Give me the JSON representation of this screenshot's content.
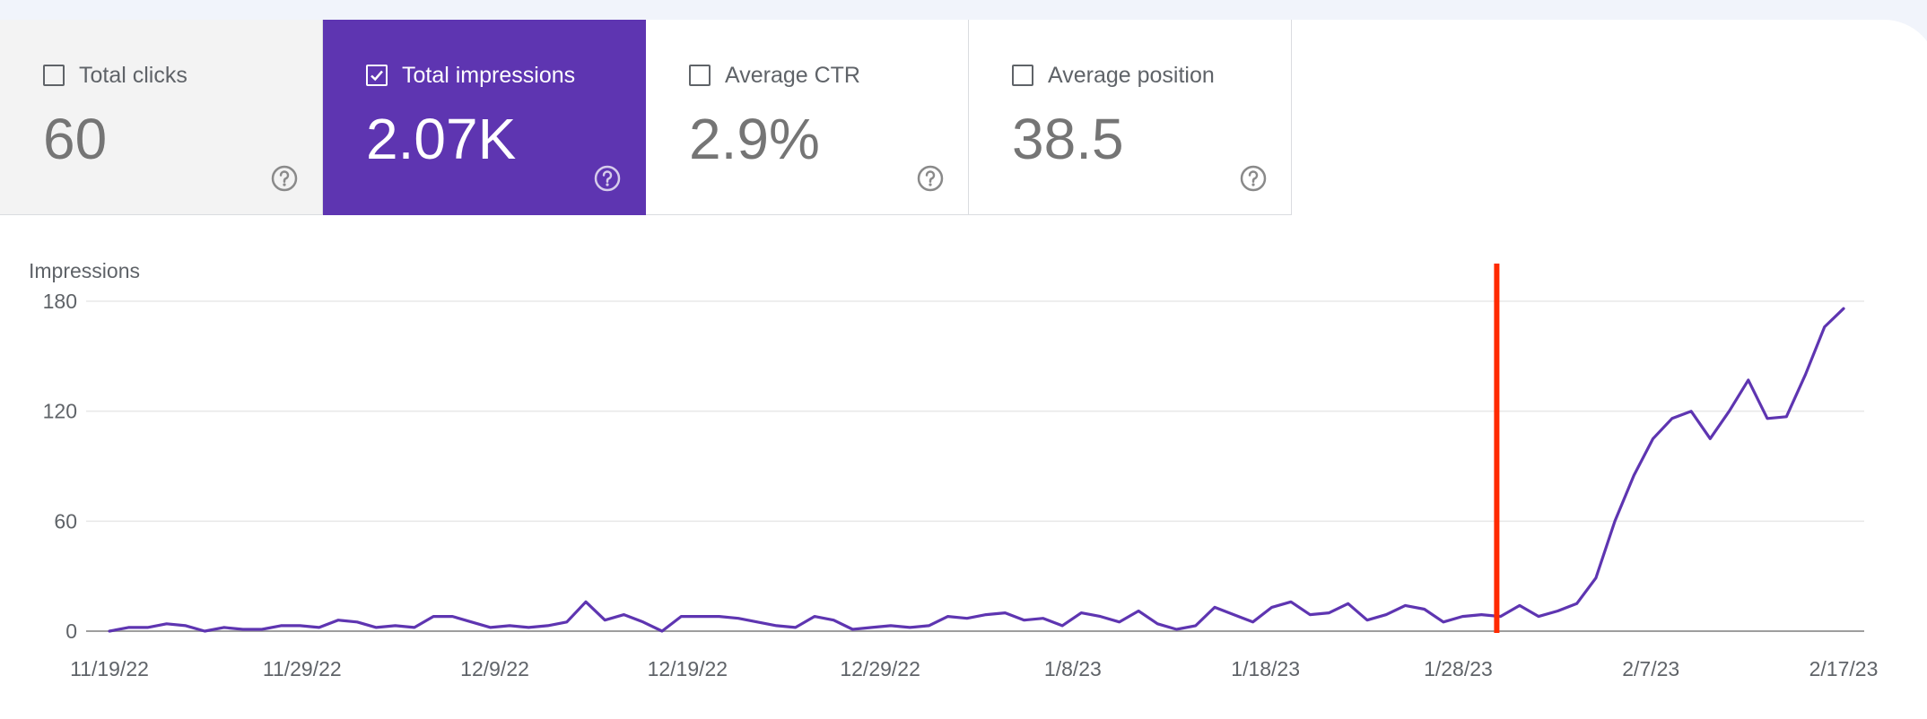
{
  "metrics": [
    {
      "label": "Total clicks",
      "value": "60",
      "checked": false
    },
    {
      "label": "Total impressions",
      "value": "2.07K",
      "checked": true
    },
    {
      "label": "Average CTR",
      "value": "2.9%",
      "checked": false
    },
    {
      "label": "Average position",
      "value": "38.5",
      "checked": false
    }
  ],
  "colors": {
    "accent": "#5e35b1",
    "line": "#5e35b1",
    "marker": "#ff2a00",
    "grid": "#e8e8e8",
    "baseline": "#9e9e9e"
  },
  "icons": {
    "help": "help-circle-icon",
    "check": "check-icon"
  },
  "chart_data": {
    "type": "line",
    "ylabel": "Impressions",
    "ylim": [
      0,
      180
    ],
    "yticks": [
      "0",
      "60",
      "120",
      "180"
    ],
    "xtick_labels": [
      "11/19/22",
      "11/29/22",
      "12/9/22",
      "12/19/22",
      "12/29/22",
      "1/8/23",
      "1/18/23",
      "1/28/23",
      "2/7/23",
      "2/17/23"
    ],
    "x_start": "11/19/22",
    "x_end": "2/17/23",
    "marker_date": "1/30/23",
    "grid": true,
    "series": [
      {
        "name": "Impressions",
        "values": [
          0,
          2,
          2,
          4,
          3,
          0,
          2,
          1,
          1,
          3,
          3,
          2,
          6,
          5,
          2,
          3,
          2,
          8,
          8,
          5,
          2,
          3,
          2,
          3,
          5,
          16,
          6,
          9,
          5,
          0,
          8,
          8,
          8,
          7,
          5,
          3,
          2,
          8,
          6,
          1,
          2,
          3,
          2,
          3,
          8,
          7,
          9,
          10,
          6,
          7,
          3,
          10,
          8,
          5,
          11,
          4,
          1,
          3,
          13,
          9,
          5,
          13,
          16,
          9,
          10,
          15,
          6,
          9,
          14,
          12,
          5,
          8,
          9,
          8,
          14,
          8,
          11,
          15,
          29,
          60,
          85,
          105,
          116,
          120,
          105,
          120,
          137,
          116,
          117,
          140,
          166,
          176
        ]
      }
    ]
  }
}
